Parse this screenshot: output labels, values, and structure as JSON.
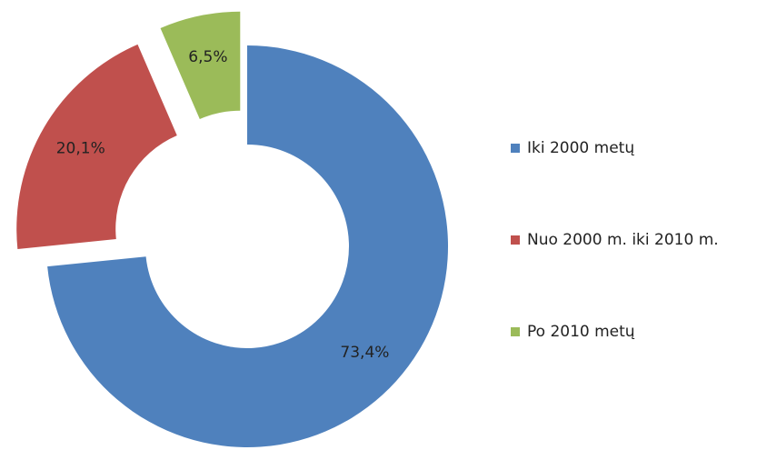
{
  "chart_data": {
    "type": "donut",
    "categories": [
      "Iki 2000 metų",
      "Nuo 2000 m. iki 2010 m.",
      "Po 2010 metų"
    ],
    "values": [
      73.4,
      20.1,
      6.5
    ],
    "value_labels": [
      "73,4%",
      "20,1%",
      "6,5%"
    ],
    "colors": [
      "#4f81bd",
      "#c0504d",
      "#9bbb59"
    ],
    "legend": "right"
  }
}
